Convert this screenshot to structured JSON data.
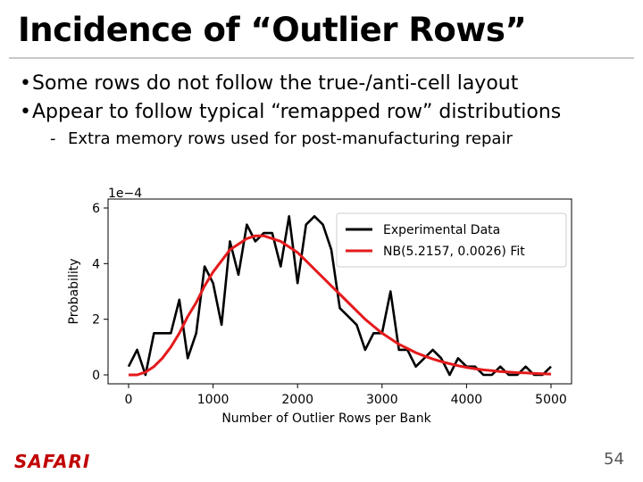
{
  "slide": {
    "title": "Incidence of “Outlier Rows”",
    "bullets": [
      "Some rows do not follow the true-/anti-cell layout",
      "Appear to follow typical “remapped row” distributions"
    ],
    "sub_bullets": [
      "Extra memory rows used for post-manufacturing repair"
    ],
    "footer_logo": "SAFARI",
    "page_number": "54",
    "colors": {
      "title_rule": "#c8c8c8",
      "logo": "#c00000"
    }
  },
  "chart_data": {
    "type": "line",
    "xlabel": "Number of Outlier Rows per Bank",
    "ylabel": "Probability",
    "y_scale_label": "1e−4",
    "xlim": [
      0,
      5000
    ],
    "ylim": [
      0,
      6
    ],
    "xticks": [
      0,
      1000,
      2000,
      3000,
      4000,
      5000
    ],
    "yticks": [
      0,
      2,
      4,
      6
    ],
    "legend_position": "top-right",
    "series": [
      {
        "name": "Experimental Data",
        "color": "#000000",
        "x": [
          0,
          100,
          200,
          300,
          400,
          500,
          600,
          700,
          800,
          900,
          1000,
          1100,
          1200,
          1300,
          1400,
          1500,
          1600,
          1700,
          1800,
          1900,
          2000,
          2100,
          2200,
          2300,
          2400,
          2500,
          2600,
          2700,
          2800,
          2900,
          3000,
          3100,
          3200,
          3300,
          3400,
          3500,
          3600,
          3700,
          3800,
          3900,
          4000,
          4100,
          4200,
          4300,
          4400,
          4500,
          4600,
          4700,
          4800,
          4900,
          5000
        ],
        "values": [
          0.3,
          0.9,
          0.0,
          1.5,
          1.5,
          1.5,
          2.7,
          0.6,
          1.5,
          3.9,
          3.3,
          1.8,
          4.8,
          3.6,
          5.4,
          4.8,
          5.1,
          5.1,
          3.9,
          5.7,
          3.3,
          5.4,
          5.7,
          5.4,
          4.5,
          2.4,
          2.1,
          1.8,
          0.9,
          1.5,
          1.5,
          3.0,
          0.9,
          0.9,
          0.3,
          0.6,
          0.9,
          0.6,
          0.0,
          0.6,
          0.3,
          0.3,
          0.0,
          0.0,
          0.3,
          0.0,
          0.0,
          0.3,
          0.0,
          0.0,
          0.3
        ]
      },
      {
        "name": "NB(5.2157, 0.0026) Fit",
        "color": "#e41a1c",
        "x": [
          0,
          100,
          200,
          300,
          400,
          500,
          600,
          700,
          800,
          900,
          1000,
          1100,
          1200,
          1300,
          1400,
          1500,
          1600,
          1700,
          1800,
          1900,
          2000,
          2100,
          2200,
          2300,
          2400,
          2500,
          2600,
          2700,
          2800,
          2900,
          3000,
          3100,
          3200,
          3300,
          3400,
          3500,
          3600,
          3700,
          3800,
          3900,
          4000,
          4100,
          4200,
          4300,
          4400,
          4500,
          4600,
          4700,
          4800,
          4900,
          5000
        ],
        "values": [
          0.0,
          0.0,
          0.1,
          0.3,
          0.6,
          1.0,
          1.5,
          2.1,
          2.6,
          3.2,
          3.7,
          4.1,
          4.5,
          4.7,
          4.9,
          5.0,
          5.0,
          4.9,
          4.8,
          4.6,
          4.4,
          4.1,
          3.8,
          3.5,
          3.2,
          2.9,
          2.6,
          2.3,
          2.0,
          1.75,
          1.5,
          1.3,
          1.1,
          0.95,
          0.8,
          0.68,
          0.57,
          0.48,
          0.4,
          0.33,
          0.27,
          0.22,
          0.18,
          0.15,
          0.12,
          0.1,
          0.08,
          0.07,
          0.05,
          0.04,
          0.03
        ]
      }
    ]
  }
}
